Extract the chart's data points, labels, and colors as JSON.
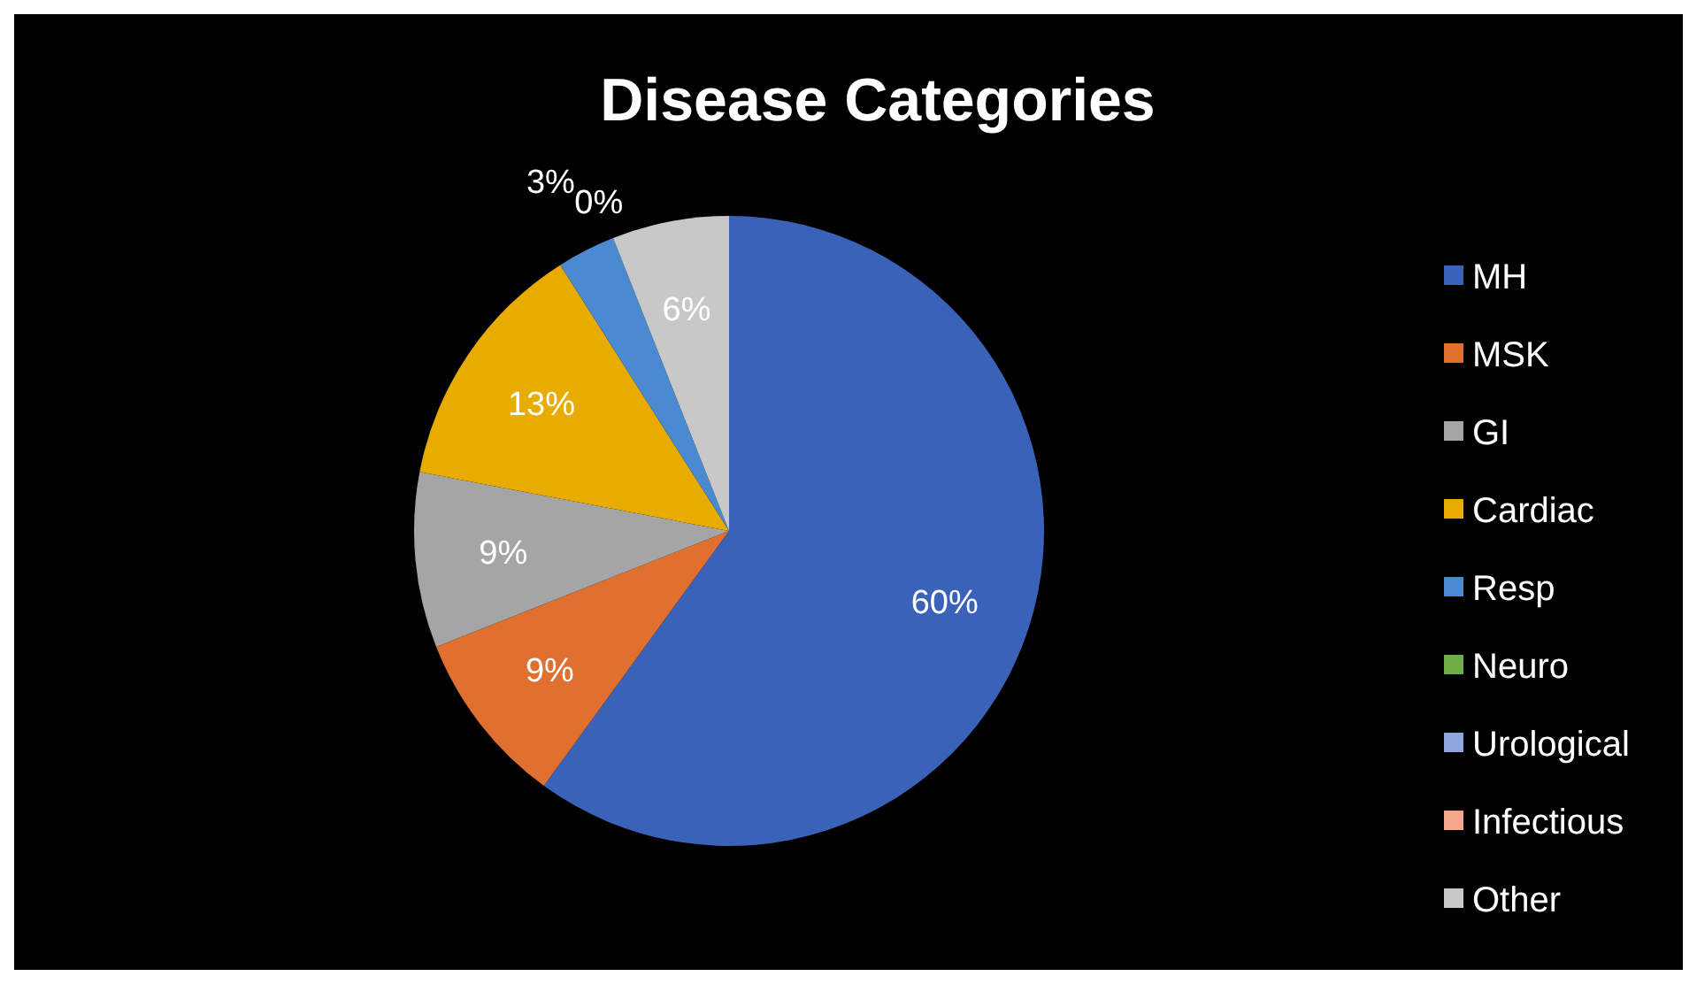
{
  "chart_data": {
    "type": "pie",
    "title": "Disease Categories",
    "categories": [
      "MH",
      "MSK",
      "GI",
      "Cardiac",
      "Resp",
      "Neuro",
      "Urological",
      "Infectious",
      "Other"
    ],
    "values": [
      60,
      9,
      9,
      13,
      3,
      0,
      0,
      0,
      6
    ],
    "value_labels": [
      "60%",
      "9%",
      "9%",
      "13%",
      "3%",
      "0%",
      null,
      null,
      "6%"
    ],
    "colors": [
      "#3a62b8",
      "#e07030",
      "#a5a5a5",
      "#e8ac00",
      "#4a8ad0",
      "#70ad47",
      "#8fa6de",
      "#f4a58a",
      "#c8c8c8"
    ],
    "legend": "right"
  }
}
